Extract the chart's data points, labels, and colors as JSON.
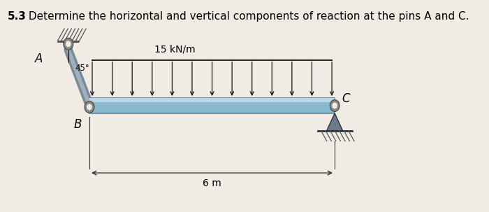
{
  "title_bold": "5.3",
  "title_rest": " Determine the horizontal and vertical components of reaction at the pins A and C.",
  "title_fontsize": 11,
  "bg_color": "#f0ece4",
  "beam_color": "#8ab8cc",
  "beam_highlight": "#b8d8e8",
  "beam_edge": "#5a8090",
  "bar_color": "#7a8a98",
  "bar_highlight": "#a0b0bc",
  "load_label": "15 kN/m",
  "label_A": "A",
  "label_B": "B",
  "label_C": "C",
  "label_45": "45°",
  "label_6m": "6 m",
  "num_arrows": 13,
  "support_color": "#6a7a88",
  "hatch_color": "#555555",
  "pin_color": "#888888",
  "dim_color": "#333333"
}
